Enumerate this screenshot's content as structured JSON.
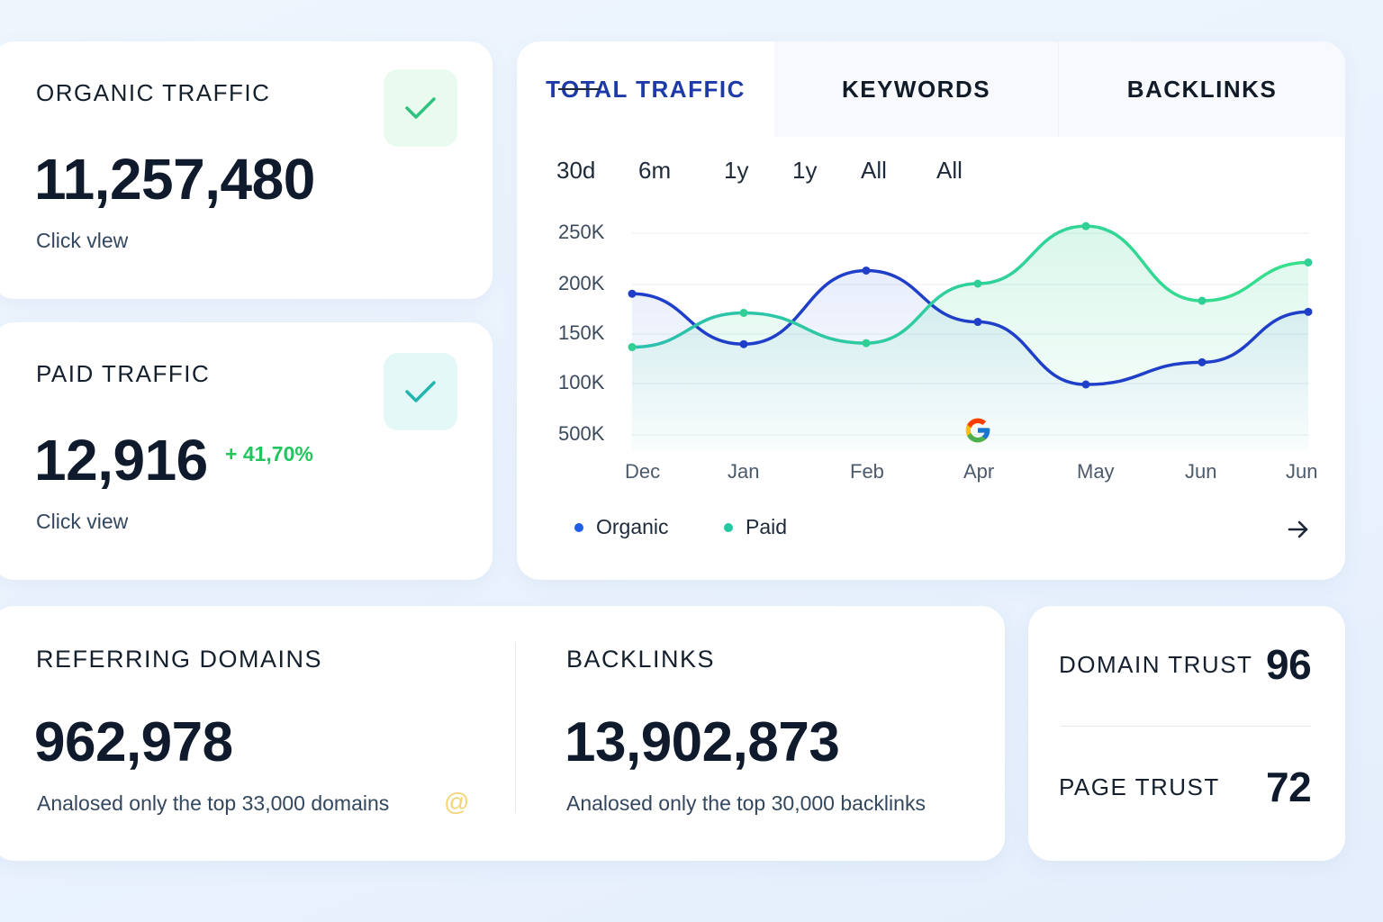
{
  "organic": {
    "label": "ORGANIC TRAFFIC",
    "value": "11,257,480",
    "sub": "Click vlew"
  },
  "paid": {
    "label": "PAID TRAFFIC",
    "value": "12,916",
    "change": "+ 41,70%",
    "sub": "Click view"
  },
  "tabs": [
    "TOTAL TRAFFIC",
    "KEYWORDS",
    "BACKLINKS"
  ],
  "ranges": [
    "30d",
    "6m",
    "1y",
    "1y",
    "All",
    "All"
  ],
  "legend": [
    "Organic",
    "Paid"
  ],
  "colors": {
    "organic": "#1f3fc8",
    "paid": "#2fd38f",
    "accent_green": "#22c55e",
    "check_green": "#2ec27e",
    "check_teal": "#22b5b0"
  },
  "icons": {
    "organic_check": "check-icon",
    "paid_check": "check-icon",
    "chart_marker": "google-icon",
    "next": "arrow-right-icon",
    "domains_info": "at-icon"
  },
  "chart_data": {
    "type": "line",
    "x": [
      "Dec",
      "Jan",
      "Feb",
      "Apr",
      "May",
      "Jun",
      "Jun"
    ],
    "y_ticks": [
      "250K",
      "200K",
      "150K",
      "100K",
      "500K"
    ],
    "series": [
      {
        "name": "Organic",
        "values": [
          190,
          140,
          213,
          162,
          100,
          122,
          172
        ]
      },
      {
        "name": "Paid",
        "values": [
          137,
          171,
          141,
          200,
          257,
          183,
          221
        ]
      }
    ],
    "grid": true,
    "legend": "bottom-left"
  },
  "referring": {
    "label": "REFERRING DOMAINS",
    "value": "962,978",
    "sub": "Analosed only the top 33,000 domains"
  },
  "backlinks": {
    "label": "BACKLINKS",
    "value": "13,902,873",
    "sub": "Analosed only the top 30,000 backlinks"
  },
  "trust": {
    "domain_label": "DOMAIN TRUST",
    "domain_value": "96",
    "page_label": "PAGE TRUST",
    "page_value": "72"
  }
}
